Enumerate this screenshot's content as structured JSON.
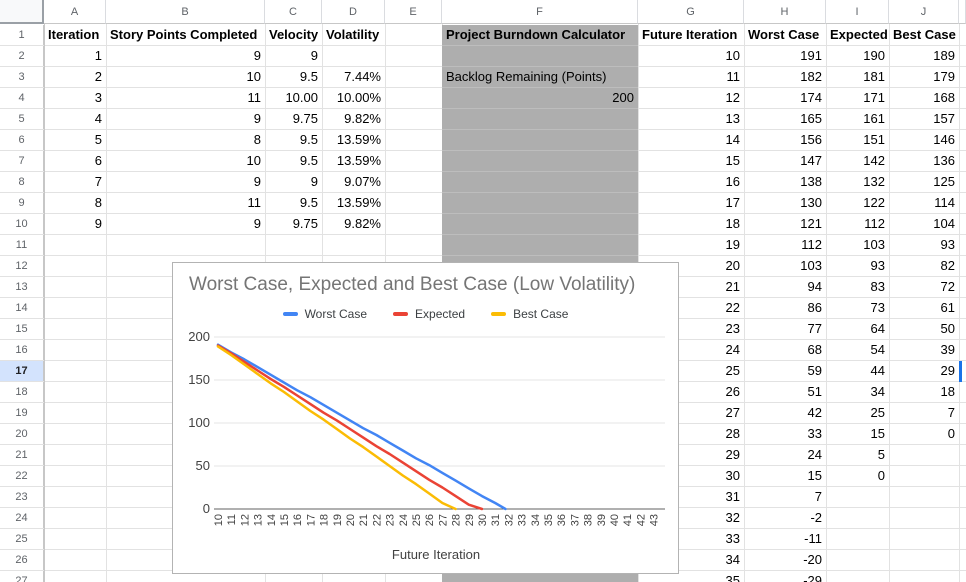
{
  "sheet": {
    "col_headers": [
      "A",
      "B",
      "C",
      "D",
      "E",
      "F",
      "G",
      "H",
      "I",
      "J"
    ],
    "row_count": 27,
    "active_row": 17,
    "history_table": {
      "headers": [
        "Iteration",
        "Story Points Completed",
        "Velocity",
        "Volatility"
      ],
      "rows": [
        [
          "1",
          "9",
          "9",
          ""
        ],
        [
          "2",
          "10",
          "9.5",
          "7.44%"
        ],
        [
          "3",
          "11",
          "10.00",
          "10.00%"
        ],
        [
          "4",
          "9",
          "9.75",
          "9.82%"
        ],
        [
          "5",
          "8",
          "9.5",
          "13.59%"
        ],
        [
          "6",
          "10",
          "9.5",
          "13.59%"
        ],
        [
          "7",
          "9",
          "9",
          "9.07%"
        ],
        [
          "8",
          "11",
          "9.5",
          "13.59%"
        ],
        [
          "9",
          "9",
          "9.75",
          "9.82%"
        ]
      ]
    },
    "calculator": {
      "title": "Project Burndown Calculator",
      "backlog_label": "Backlog Remaining (Points)",
      "backlog_value": "200",
      "fill_color": "#aeaeae"
    },
    "forecast_table": {
      "headers": [
        "Future Iteration",
        "Worst Case",
        "Expected",
        "Best Case"
      ],
      "rows": [
        [
          "10",
          "191",
          "190",
          "189"
        ],
        [
          "11",
          "182",
          "181",
          "179"
        ],
        [
          "12",
          "174",
          "171",
          "168"
        ],
        [
          "13",
          "165",
          "161",
          "157"
        ],
        [
          "14",
          "156",
          "151",
          "146"
        ],
        [
          "15",
          "147",
          "142",
          "136"
        ],
        [
          "16",
          "138",
          "132",
          "125"
        ],
        [
          "17",
          "130",
          "122",
          "114"
        ],
        [
          "18",
          "121",
          "112",
          "104"
        ],
        [
          "19",
          "112",
          "103",
          "93"
        ],
        [
          "20",
          "103",
          "93",
          "82"
        ],
        [
          "21",
          "94",
          "83",
          "72"
        ],
        [
          "22",
          "86",
          "73",
          "61"
        ],
        [
          "23",
          "77",
          "64",
          "50"
        ],
        [
          "24",
          "68",
          "54",
          "39"
        ],
        [
          "25",
          "59",
          "44",
          "29"
        ],
        [
          "26",
          "51",
          "34",
          "18"
        ],
        [
          "27",
          "42",
          "25",
          "7"
        ],
        [
          "28",
          "33",
          "15",
          "0"
        ],
        [
          "29",
          "24",
          "5",
          ""
        ],
        [
          "30",
          "15",
          "0",
          ""
        ],
        [
          "31",
          "7",
          "",
          ""
        ],
        [
          "32",
          "-2",
          "",
          ""
        ],
        [
          "33",
          "-11",
          "",
          ""
        ],
        [
          "34",
          "-20",
          "",
          ""
        ],
        [
          "35",
          "-29",
          "",
          ""
        ]
      ]
    },
    "selection_color": "#1a73e8"
  },
  "chart_data": {
    "type": "line",
    "title": "Worst Case, Expected and Best Case (Low Volatility)",
    "xlabel": "Future Iteration",
    "ylabel": "",
    "x_start": 10,
    "xticks": [
      10,
      11,
      12,
      13,
      14,
      15,
      16,
      17,
      18,
      19,
      20,
      21,
      22,
      23,
      24,
      25,
      26,
      27,
      28,
      29,
      30,
      31,
      32,
      33,
      34,
      35,
      36,
      37,
      38,
      39,
      40,
      41,
      42,
      43
    ],
    "yticks": [
      0,
      50,
      100,
      150,
      200
    ],
    "ylim": [
      0,
      200
    ],
    "grid": true,
    "legend_position": "top",
    "series": [
      {
        "name": "Worst Case",
        "color": "#4285f4",
        "values": [
          191,
          182,
          174,
          165,
          156,
          147,
          138,
          130,
          121,
          112,
          103,
          94,
          86,
          77,
          68,
          59,
          51,
          42,
          33,
          24,
          15,
          7,
          -2,
          -11,
          -20,
          -29
        ]
      },
      {
        "name": "Expected",
        "color": "#ea4335",
        "values": [
          190,
          181,
          171,
          161,
          151,
          142,
          132,
          122,
          112,
          103,
          93,
          83,
          73,
          64,
          54,
          44,
          34,
          25,
          15,
          5,
          0
        ]
      },
      {
        "name": "Best Case",
        "color": "#fbbc04",
        "values": [
          189,
          179,
          168,
          157,
          146,
          136,
          125,
          114,
          104,
          93,
          82,
          72,
          61,
          50,
          39,
          29,
          18,
          7,
          0
        ]
      }
    ]
  }
}
